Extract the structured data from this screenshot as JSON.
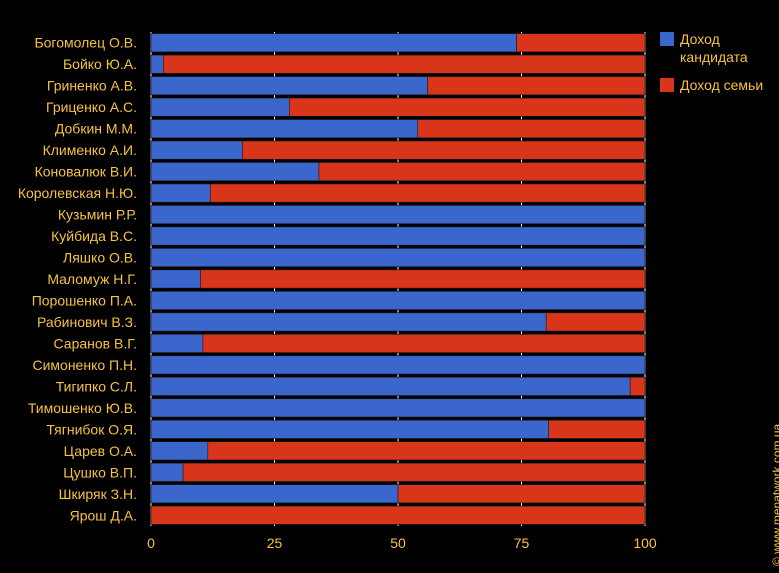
{
  "chart_data": {
    "type": "bar",
    "orientation": "horizontal",
    "stacked": true,
    "categories": [
      "Богомолец О.В.",
      "Бойко Ю.А.",
      "Гриненко А.В.",
      "Гриценко А.С.",
      "Добкин М.М.",
      "Клименко А.И.",
      "Коновалюк В.И.",
      "Королевская Н.Ю.",
      "Кузьмин Р.Р.",
      "Куйбида В.С.",
      "Ляшко О.В.",
      "Маломуж Н.Г.",
      "Порошенко П.А.",
      "Рабинович В.З.",
      "Саранов В.Г.",
      "Симоненко П.Н.",
      "Тигипко С.Л.",
      "Тимошенко Ю.В.",
      "Тягнибок О.Я.",
      "Царев О.А.",
      "Цушко В.П.",
      "Шкиряк З.Н.",
      "Ярош Д.А."
    ],
    "series": [
      {
        "name": "Доход кандидата",
        "color": "#3b66cc",
        "values": [
          74,
          2.5,
          56,
          28,
          54,
          18.5,
          34,
          12,
          100,
          100,
          100,
          10,
          100,
          80,
          10.5,
          100,
          97,
          100,
          80.5,
          11.5,
          6.5,
          50,
          0
        ]
      },
      {
        "name": "Доход семьи",
        "color": "#d9351a",
        "values": [
          26,
          97.5,
          44,
          72,
          46,
          81.5,
          66,
          88,
          0,
          0,
          0,
          90,
          0,
          20,
          89.5,
          0,
          3,
          0,
          19.5,
          88.5,
          93.5,
          50,
          100
        ]
      }
    ],
    "xlim": [
      0,
      100
    ],
    "xticks": [
      0,
      25,
      50,
      75,
      100
    ],
    "grid": true,
    "legend": "top-right",
    "title": "",
    "xlabel": "",
    "ylabel": ""
  },
  "legend": {
    "items": [
      {
        "label": "Доход кандидата",
        "color": "#3b66cc"
      },
      {
        "label": "Доход семьи",
        "color": "#d9351a"
      }
    ]
  },
  "credit": "© www.menatwork.com.ua"
}
